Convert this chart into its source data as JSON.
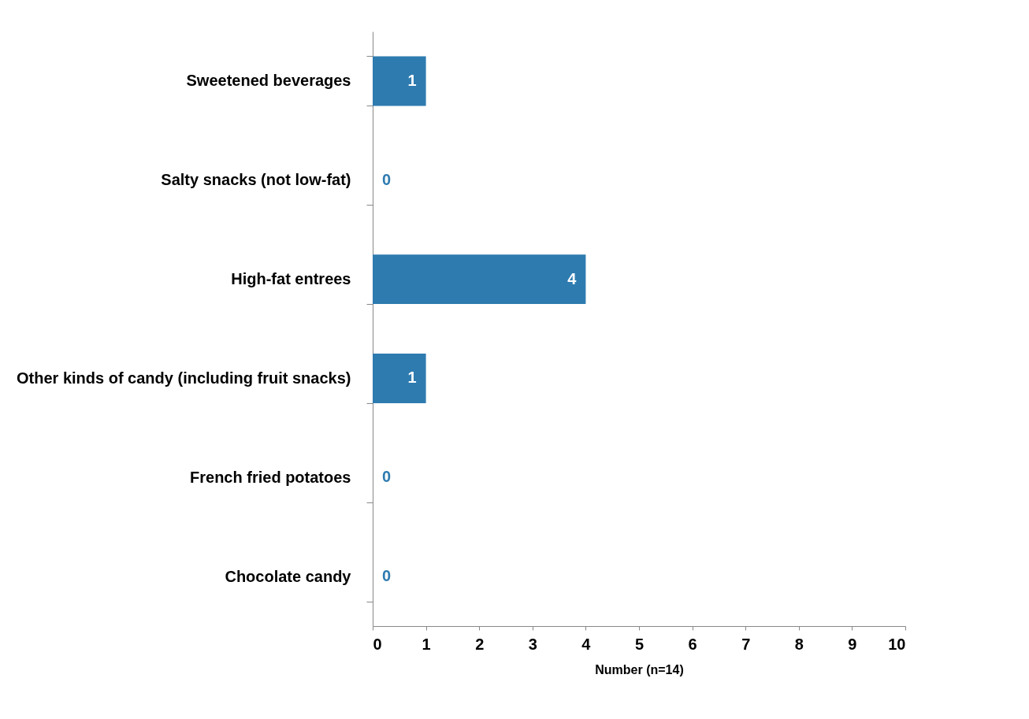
{
  "chart_data": {
    "type": "bar",
    "orientation": "horizontal",
    "xlabel": "Number (n=14)",
    "categories": [
      "Sweetened beverages",
      "Salty snacks (not low-fat)",
      "High-fat entrees",
      "Other kinds of candy (including fruit snacks)",
      "French fried potatoes",
      "Chocolate candy"
    ],
    "values": [
      1,
      0,
      4,
      1,
      0,
      0
    ],
    "color": "#2e7bb0",
    "xlim": [
      0,
      10
    ],
    "xticks": [
      0,
      1,
      2,
      3,
      4,
      5,
      6,
      7,
      8,
      9,
      10
    ],
    "grid": false,
    "data_labels": true
  }
}
